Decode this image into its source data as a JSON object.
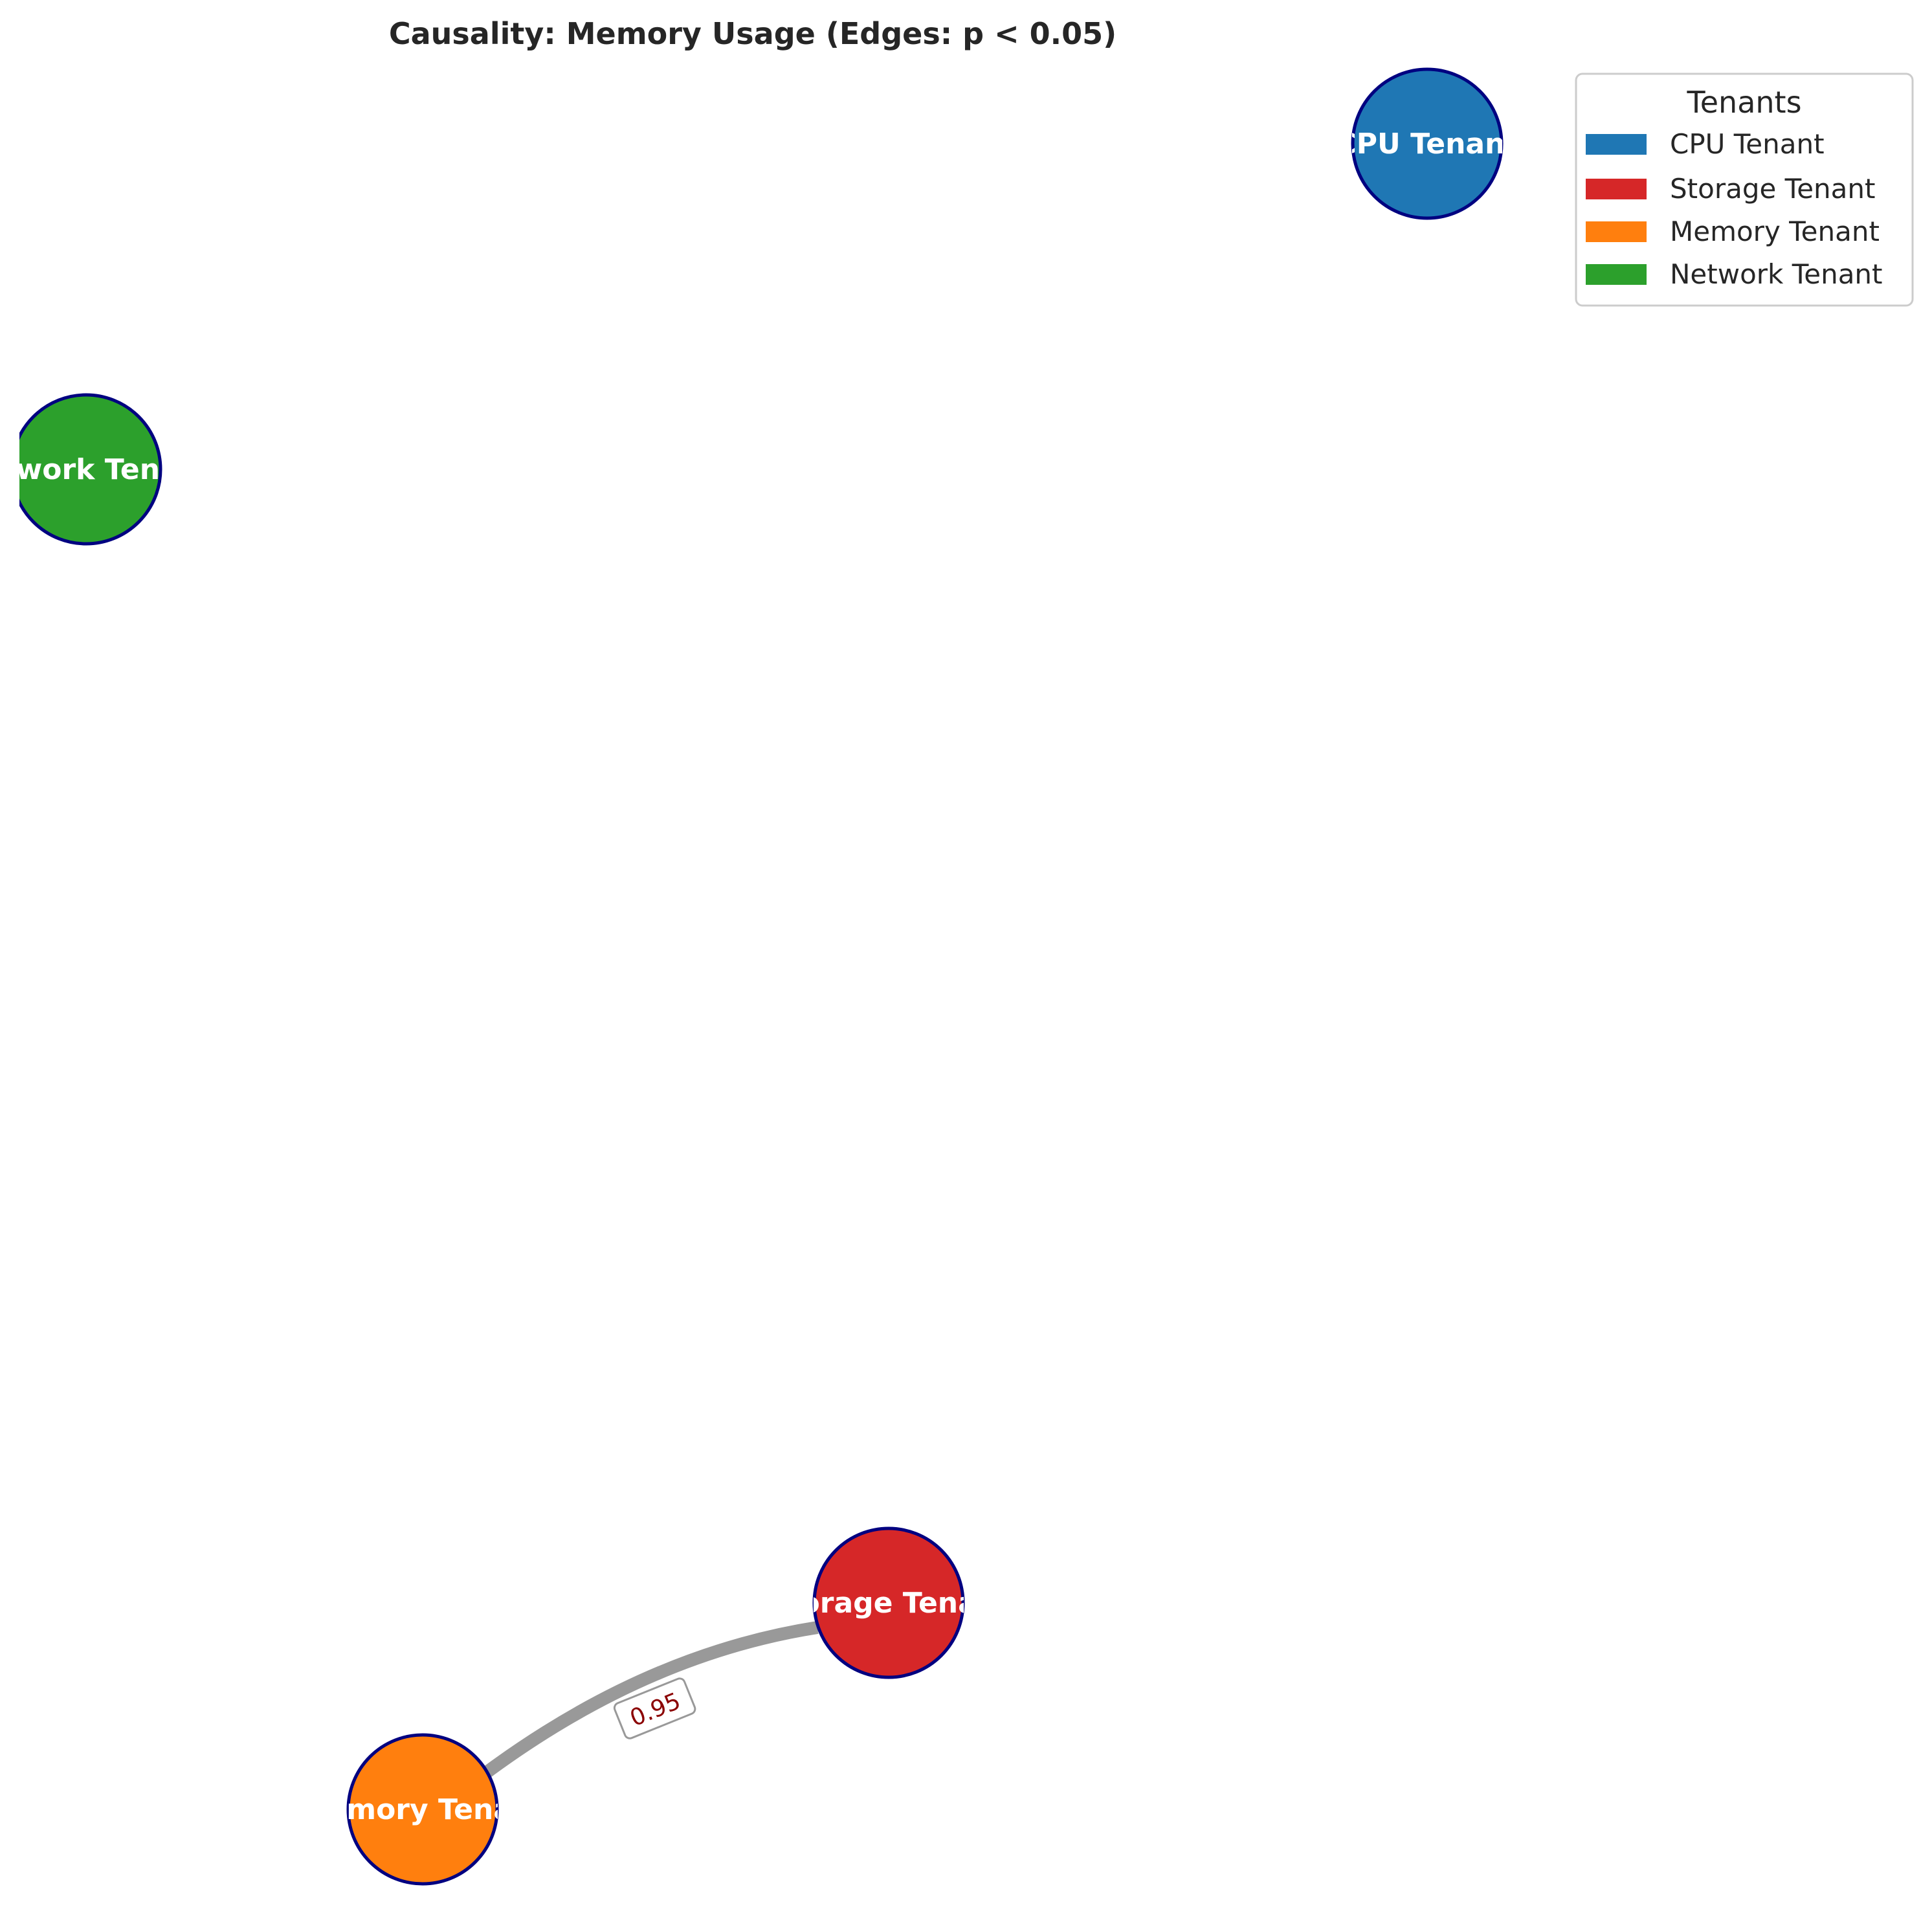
{
  "title": "Causality: Memory Usage (Edges: p < 0.05)",
  "nodes": [
    {
      "id": "cpu",
      "label": "CPU Tenant",
      "color": "#1f77b4"
    },
    {
      "id": "network",
      "label": "Network Tenant",
      "color": "#2ca02c"
    },
    {
      "id": "storage",
      "label": "Storage Tenant",
      "color": "#d62728"
    },
    {
      "id": "memory",
      "label": "Memory Tenant",
      "color": "#ff7f0e"
    }
  ],
  "edges": [
    {
      "source": "memory",
      "target": "storage",
      "label": "0.95",
      "color": "#999999"
    }
  ],
  "legend": {
    "title": "Tenants",
    "items": [
      {
        "label": "CPU Tenant",
        "color": "#1f77b4"
      },
      {
        "label": "Storage Tenant",
        "color": "#d62728"
      },
      {
        "label": "Memory Tenant",
        "color": "#ff7f0e"
      },
      {
        "label": "Network Tenant",
        "color": "#2ca02c"
      }
    ]
  },
  "node_border_color": "#000080"
}
